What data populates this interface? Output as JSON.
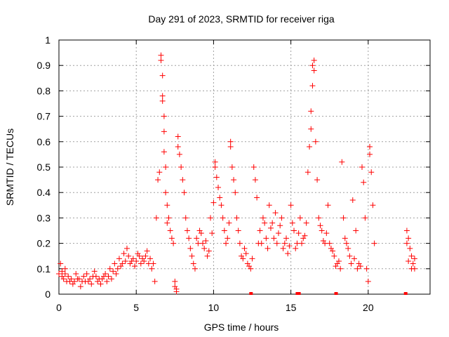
{
  "chart_data": {
    "type": "scatter",
    "title": "Day 291 of 2023, SRMTID for receiver riga",
    "xlabel": "GPS time / hours",
    "ylabel": "SRMTID / TECUs",
    "xlim": [
      0,
      24
    ],
    "ylim": [
      0,
      1
    ],
    "xticks": [
      0,
      5,
      10,
      15,
      20
    ],
    "xtick_labels": [
      "0",
      "5",
      "10",
      "15",
      "20"
    ],
    "yticks": [
      0,
      0.1,
      0.2,
      0.3,
      0.4,
      0.5,
      0.6,
      0.7,
      0.8,
      0.9,
      1
    ],
    "ytick_labels": [
      "0",
      "0.1",
      "0.2",
      "0.3",
      "0.4",
      "0.5",
      "0.6",
      "0.7",
      "0.8",
      "0.9",
      "1"
    ],
    "grid": true,
    "marker": "+",
    "color": "#ff0000",
    "series": [
      {
        "name": "SRMTID",
        "points": [
          [
            0.0,
            0.08
          ],
          [
            0.1,
            0.12
          ],
          [
            0.2,
            0.07
          ],
          [
            0.3,
            0.06
          ],
          [
            0.4,
            0.1
          ],
          [
            0.5,
            0.05
          ],
          [
            0.6,
            0.07
          ],
          [
            0.8,
            0.06
          ],
          [
            0.9,
            0.04
          ],
          [
            1.0,
            0.05
          ],
          [
            1.1,
            0.08
          ],
          [
            1.3,
            0.06
          ],
          [
            1.4,
            0.03
          ],
          [
            1.5,
            0.05
          ],
          [
            1.6,
            0.07
          ],
          [
            1.8,
            0.08
          ],
          [
            1.9,
            0.05
          ],
          [
            2.0,
            0.06
          ],
          [
            2.1,
            0.04
          ],
          [
            2.3,
            0.09
          ],
          [
            2.4,
            0.07
          ],
          [
            2.5,
            0.05
          ],
          [
            2.7,
            0.04
          ],
          [
            2.8,
            0.06
          ],
          [
            3.0,
            0.08
          ],
          [
            3.1,
            0.05
          ],
          [
            3.3,
            0.1
          ],
          [
            3.5,
            0.09
          ],
          [
            3.6,
            0.12
          ],
          [
            3.8,
            0.1
          ],
          [
            3.9,
            0.14
          ],
          [
            4.0,
            0.11
          ],
          [
            4.2,
            0.16
          ],
          [
            4.3,
            0.13
          ],
          [
            4.4,
            0.18
          ],
          [
            4.5,
            0.15
          ],
          [
            4.6,
            0.12
          ],
          [
            4.8,
            0.14
          ],
          [
            4.9,
            0.11
          ],
          [
            5.0,
            0.13
          ],
          [
            5.1,
            0.16
          ],
          [
            5.3,
            0.12
          ],
          [
            5.4,
            0.14
          ],
          [
            5.6,
            0.15
          ],
          [
            5.7,
            0.17
          ],
          [
            5.8,
            0.12
          ],
          [
            5.9,
            0.14
          ],
          [
            6.0,
            0.1
          ],
          [
            6.1,
            0.12
          ],
          [
            6.2,
            0.05
          ],
          [
            6.3,
            0.3
          ],
          [
            6.4,
            0.45
          ],
          [
            6.5,
            0.48
          ],
          [
            6.6,
            0.94
          ],
          [
            6.6,
            0.92
          ],
          [
            6.7,
            0.86
          ],
          [
            6.7,
            0.78
          ],
          [
            6.7,
            0.76
          ],
          [
            6.8,
            0.7
          ],
          [
            6.8,
            0.64
          ],
          [
            6.8,
            0.56
          ],
          [
            6.9,
            0.5
          ],
          [
            6.9,
            0.4
          ],
          [
            7.0,
            0.35
          ],
          [
            7.0,
            0.28
          ],
          [
            7.1,
            0.3
          ],
          [
            7.2,
            0.25
          ],
          [
            7.3,
            0.22
          ],
          [
            7.4,
            0.2
          ],
          [
            7.5,
            0.05
          ],
          [
            7.5,
            0.03
          ],
          [
            7.6,
            0.02
          ],
          [
            7.6,
            0.01
          ],
          [
            7.7,
            0.62
          ],
          [
            7.7,
            0.58
          ],
          [
            7.8,
            0.55
          ],
          [
            7.9,
            0.5
          ],
          [
            8.0,
            0.45
          ],
          [
            8.1,
            0.4
          ],
          [
            8.2,
            0.3
          ],
          [
            8.3,
            0.25
          ],
          [
            8.4,
            0.22
          ],
          [
            8.5,
            0.18
          ],
          [
            8.6,
            0.15
          ],
          [
            8.7,
            0.12
          ],
          [
            8.8,
            0.1
          ],
          [
            9.0,
            0.2
          ],
          [
            9.2,
            0.24
          ],
          [
            9.4,
            0.18
          ],
          [
            9.6,
            0.15
          ],
          [
            9.8,
            0.3
          ],
          [
            10.0,
            0.36
          ],
          [
            10.1,
            0.5
          ],
          [
            10.1,
            0.52
          ],
          [
            10.2,
            0.46
          ],
          [
            10.3,
            0.42
          ],
          [
            10.4,
            0.38
          ],
          [
            10.5,
            0.35
          ],
          [
            10.6,
            0.3
          ],
          [
            10.7,
            0.25
          ],
          [
            10.8,
            0.2
          ],
          [
            10.9,
            0.22
          ],
          [
            11.0,
            0.28
          ],
          [
            11.1,
            0.58
          ],
          [
            11.1,
            0.6
          ],
          [
            11.2,
            0.5
          ],
          [
            11.3,
            0.45
          ],
          [
            11.4,
            0.4
          ],
          [
            11.5,
            0.3
          ],
          [
            11.6,
            0.25
          ],
          [
            11.7,
            0.2
          ],
          [
            11.8,
            0.15
          ],
          [
            12.0,
            0.18
          ],
          [
            12.2,
            0.12
          ],
          [
            12.4,
            0.1
          ],
          [
            12.6,
            0.5
          ],
          [
            12.7,
            0.45
          ],
          [
            12.8,
            0.38
          ],
          [
            12.9,
            0.2
          ],
          [
            13.0,
            0.25
          ],
          [
            13.2,
            0.3
          ],
          [
            13.4,
            0.22
          ],
          [
            13.6,
            0.35
          ],
          [
            13.8,
            0.28
          ],
          [
            14.0,
            0.32
          ],
          [
            14.2,
            0.24
          ],
          [
            14.4,
            0.3
          ],
          [
            14.6,
            0.2
          ],
          [
            14.8,
            0.16
          ],
          [
            15.0,
            0.35
          ],
          [
            15.2,
            0.25
          ],
          [
            15.4,
            0.2
          ],
          [
            15.6,
            0.3
          ],
          [
            15.8,
            0.22
          ],
          [
            16.0,
            0.28
          ],
          [
            16.1,
            0.48
          ],
          [
            16.2,
            0.58
          ],
          [
            16.3,
            0.65
          ],
          [
            16.3,
            0.72
          ],
          [
            16.4,
            0.82
          ],
          [
            16.4,
            0.9
          ],
          [
            16.5,
            0.92
          ],
          [
            16.5,
            0.88
          ],
          [
            16.6,
            0.6
          ],
          [
            16.7,
            0.45
          ],
          [
            16.8,
            0.3
          ],
          [
            17.0,
            0.25
          ],
          [
            17.2,
            0.2
          ],
          [
            17.4,
            0.35
          ],
          [
            17.6,
            0.18
          ],
          [
            17.8,
            0.15
          ],
          [
            18.0,
            0.12
          ],
          [
            18.2,
            0.1
          ],
          [
            18.3,
            0.52
          ],
          [
            18.4,
            0.3
          ],
          [
            18.6,
            0.2
          ],
          [
            18.8,
            0.15
          ],
          [
            19.0,
            0.37
          ],
          [
            19.2,
            0.25
          ],
          [
            19.4,
            0.12
          ],
          [
            19.6,
            0.5
          ],
          [
            19.7,
            0.44
          ],
          [
            19.8,
            0.3
          ],
          [
            19.9,
            0.1
          ],
          [
            20.0,
            0.05
          ],
          [
            20.1,
            0.58
          ],
          [
            20.1,
            0.55
          ],
          [
            20.2,
            0.48
          ],
          [
            20.3,
            0.35
          ],
          [
            20.4,
            0.2
          ],
          [
            22.5,
            0.25
          ],
          [
            22.6,
            0.22
          ],
          [
            22.7,
            0.18
          ],
          [
            22.8,
            0.15
          ],
          [
            22.9,
            0.12
          ],
          [
            23.0,
            0.1
          ],
          [
            0.2,
            0.09
          ],
          [
            0.4,
            0.08
          ],
          [
            0.7,
            0.05
          ],
          [
            1.2,
            0.06
          ],
          [
            1.7,
            0.05
          ],
          [
            2.2,
            0.07
          ],
          [
            2.6,
            0.06
          ],
          [
            2.9,
            0.07
          ],
          [
            3.2,
            0.07
          ],
          [
            3.4,
            0.06
          ],
          [
            3.7,
            0.08
          ],
          [
            4.1,
            0.12
          ],
          [
            4.7,
            0.13
          ],
          [
            5.2,
            0.15
          ],
          [
            5.5,
            0.13
          ],
          [
            8.9,
            0.22
          ],
          [
            9.1,
            0.25
          ],
          [
            9.3,
            0.2
          ],
          [
            9.5,
            0.21
          ],
          [
            9.7,
            0.17
          ],
          [
            9.9,
            0.24
          ],
          [
            11.9,
            0.14
          ],
          [
            12.1,
            0.16
          ],
          [
            12.3,
            0.11
          ],
          [
            12.5,
            0.14
          ],
          [
            13.1,
            0.2
          ],
          [
            13.3,
            0.28
          ],
          [
            13.5,
            0.18
          ],
          [
            13.7,
            0.26
          ],
          [
            13.9,
            0.22
          ],
          [
            14.1,
            0.2
          ],
          [
            14.3,
            0.27
          ],
          [
            14.5,
            0.18
          ],
          [
            14.7,
            0.22
          ],
          [
            14.9,
            0.19
          ],
          [
            15.1,
            0.28
          ],
          [
            15.3,
            0.18
          ],
          [
            15.5,
            0.24
          ],
          [
            15.7,
            0.2
          ],
          [
            15.9,
            0.23
          ],
          [
            16.9,
            0.27
          ],
          [
            17.1,
            0.21
          ],
          [
            17.3,
            0.24
          ],
          [
            17.5,
            0.2
          ],
          [
            17.7,
            0.17
          ],
          [
            17.9,
            0.11
          ],
          [
            18.1,
            0.13
          ],
          [
            18.5,
            0.22
          ],
          [
            18.7,
            0.18
          ],
          [
            18.9,
            0.12
          ],
          [
            19.1,
            0.14
          ],
          [
            19.3,
            0.1
          ],
          [
            19.5,
            0.11
          ],
          [
            22.5,
            0.2
          ],
          [
            22.6,
            0.13
          ],
          [
            22.8,
            0.1
          ],
          [
            23.0,
            0.14
          ]
        ]
      }
    ],
    "zero_markers_x": [
      12.4,
      15.4,
      15.5,
      17.9,
      22.4
    ]
  }
}
